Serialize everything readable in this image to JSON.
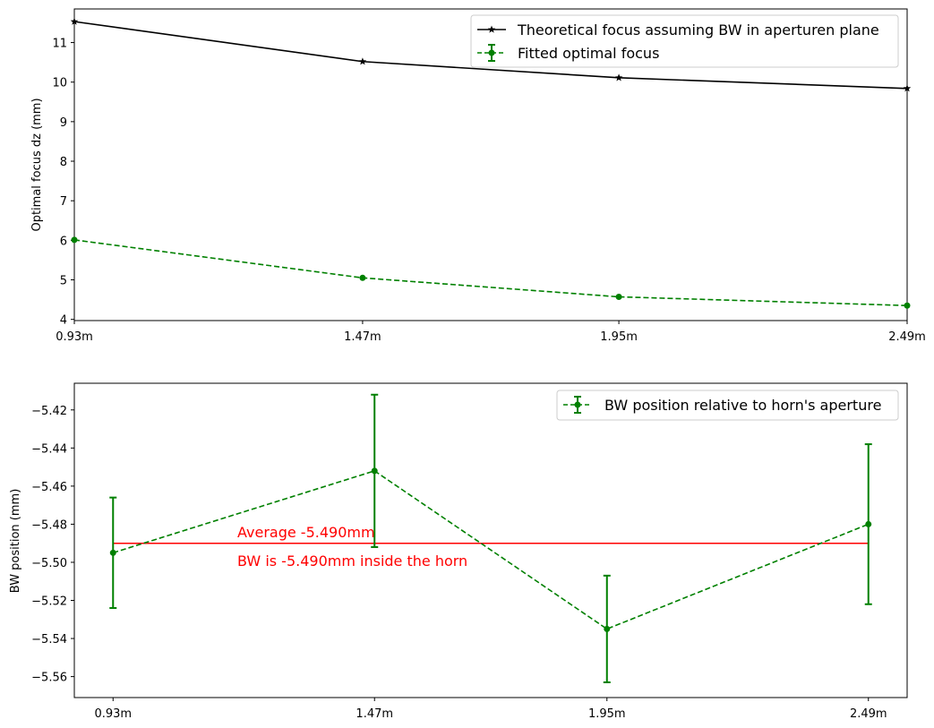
{
  "chart_data": [
    {
      "type": "line",
      "categories": [
        "0.93m",
        "1.47m",
        "1.95m",
        "2.49m"
      ],
      "x": [
        0.93,
        1.47,
        1.95,
        2.49
      ],
      "xlim": [
        0.93,
        2.49
      ],
      "ylim": [
        3.97,
        11.85
      ],
      "yticks": [
        4,
        5,
        6,
        7,
        8,
        9,
        10,
        11
      ],
      "ylabel": "Optimal focus dz (mm)",
      "legend_position": "top-right",
      "series": [
        {
          "name": "Theoretical focus assuming BW in aperturen plane",
          "values": [
            11.53,
            10.52,
            10.11,
            9.84
          ],
          "color": "#000000",
          "linestyle": "solid",
          "marker": "star"
        },
        {
          "name": "Fitted optimal focus",
          "values": [
            6.01,
            5.05,
            4.57,
            4.35
          ],
          "color": "#008000",
          "linestyle": "dashed",
          "marker": "circle",
          "error_bars": true
        }
      ]
    },
    {
      "type": "line",
      "categories": [
        "0.93m",
        "1.47m",
        "1.95m",
        "2.49m"
      ],
      "x": [
        0.93,
        1.47,
        1.95,
        2.49
      ],
      "xlim": [
        0.85,
        2.57
      ],
      "ylim": [
        -5.571,
        -5.406
      ],
      "yticks": [
        -5.42,
        -5.44,
        -5.46,
        -5.48,
        -5.5,
        -5.52,
        -5.54,
        -5.56
      ],
      "ylabel": "BW position (mm)",
      "legend_position": "top-right",
      "series": [
        {
          "name": "BW position relative to horn's aperture",
          "values": [
            -5.495,
            -5.452,
            -5.535,
            -5.48
          ],
          "errors": [
            0.029,
            0.04,
            0.028,
            0.042
          ],
          "color": "#008000",
          "linestyle": "dashed",
          "marker": "circle"
        }
      ],
      "average_line": {
        "value": -5.49,
        "color": "#ff0000"
      },
      "annotations": [
        "Average -5.490mm",
        "BW is -5.490mm inside the horn"
      ],
      "annotation_color": "#ff0000"
    }
  ]
}
